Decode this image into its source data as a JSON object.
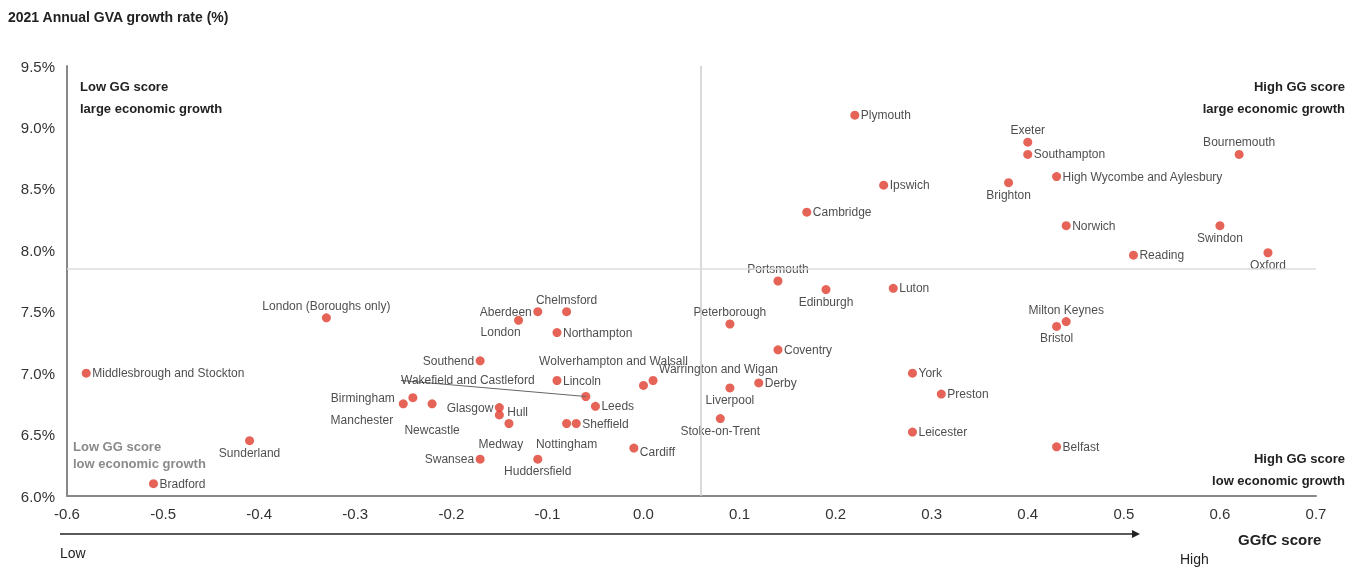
{
  "chart_data": {
    "type": "scatter",
    "ylabel": "2021 Annual GVA growth rate (%)",
    "xlabel": "GGfC score",
    "color": "#e03c2d",
    "marker": "circle",
    "xlim": [
      -0.6,
      0.7
    ],
    "xticks": [
      -0.6,
      -0.5,
      -0.4,
      -0.3,
      -0.2,
      -0.1,
      {
        "value": 0,
        "label": "0.0"
      },
      0.1,
      0.2,
      0.3,
      0.4,
      0.5,
      0.6,
      0.7
    ],
    "ylim": [
      6.0,
      9.5
    ],
    "yticks": [
      {
        "value": 6.0,
        "label": "6.0%"
      },
      {
        "value": 6.5,
        "label": "6.5%"
      },
      {
        "value": 7.0,
        "label": "7.0%"
      },
      {
        "value": 7.5,
        "label": "7.5%"
      },
      {
        "value": 8.0,
        "label": "8.0%"
      },
      {
        "value": 8.5,
        "label": "8.5%"
      },
      {
        "value": 9.0,
        "label": "9.0%"
      },
      {
        "value": 9.5,
        "label": "9.5%"
      }
    ],
    "x": [
      -0.58,
      -0.51,
      -0.41,
      -0.33,
      -0.24,
      -0.25,
      -0.22,
      -0.17,
      -0.17,
      -0.11,
      -0.13,
      -0.08,
      -0.09,
      -0.09,
      -0.15,
      -0.15,
      -0.14,
      -0.08,
      -0.07,
      -0.11,
      -0.06,
      -0.05,
      -0.01,
      0.0,
      0.01,
      0.08,
      0.09,
      0.12,
      0.09,
      0.14,
      0.14,
      0.19,
      0.26,
      0.28,
      0.31,
      0.28,
      0.43,
      0.44,
      0.43,
      0.22,
      0.4,
      0.4,
      0.62,
      0.25,
      0.38,
      0.43,
      0.17,
      0.44,
      0.6,
      0.51,
      0.65
    ],
    "values": [
      7.0,
      6.1,
      6.45,
      7.45,
      6.8,
      6.75,
      6.75,
      7.1,
      6.3,
      7.5,
      7.43,
      7.5,
      7.33,
      6.94,
      6.72,
      6.66,
      6.59,
      6.59,
      6.59,
      6.3,
      6.81,
      6.73,
      6.39,
      6.9,
      6.94,
      6.63,
      6.88,
      6.92,
      7.4,
      7.19,
      7.75,
      7.68,
      7.69,
      7.0,
      6.83,
      6.52,
      6.4,
      7.42,
      7.38,
      9.1,
      8.88,
      8.78,
      8.78,
      8.53,
      8.55,
      8.6,
      8.31,
      8.2,
      8.2,
      7.96,
      7.98
    ],
    "ref_lines": [
      {
        "axis": "x",
        "value": 0.055,
        "color": "#cccccc"
      },
      {
        "axis": "y",
        "value": 7.85,
        "color": "#dddddd"
      }
    ],
    "annotations": [
      "Low GG score\nlarge economic growth",
      "High GG score\nlarge economic growth",
      "Low GG score\nlow economic growth",
      "High GG score\nlow economic growth",
      "Low",
      "High",
      {
        "text": "Middlesbrough and Stockton",
        "x": -0.58,
        "y": 7.0
      },
      {
        "text": "Bradford",
        "x": -0.51,
        "y": 6.1
      },
      {
        "text": "Sunderland",
        "x": -0.41,
        "y": 6.45
      },
      {
        "text": "London (Boroughs only)",
        "x": -0.33,
        "y": 7.45
      },
      {
        "text": "Birmingham",
        "x": -0.24,
        "y": 6.8
      },
      {
        "text": "Manchester",
        "x": -0.25,
        "y": 6.75
      },
      {
        "text": "Newcastle",
        "x": -0.22,
        "y": 6.75
      },
      {
        "text": "Southend",
        "x": -0.17,
        "y": 7.1
      },
      {
        "text": "Swansea",
        "x": -0.17,
        "y": 6.3
      },
      {
        "text": "Aberdeen",
        "x": -0.11,
        "y": 7.5
      },
      {
        "text": "London",
        "x": -0.13,
        "y": 7.43
      },
      {
        "text": "Chelmsford",
        "x": -0.08,
        "y": 7.5
      },
      {
        "text": "Northampton",
        "x": -0.09,
        "y": 7.33
      },
      {
        "text": "Lincoln",
        "x": -0.09,
        "y": 6.94
      },
      {
        "text": "Glasgow",
        "x": -0.15,
        "y": 6.72
      },
      {
        "text": "Hull",
        "x": -0.15,
        "y": 6.66
      },
      {
        "text": "Medway",
        "x": -0.14,
        "y": 6.59
      },
      {
        "text": "Nottingham",
        "x": -0.08,
        "y": 6.59
      },
      {
        "text": "Sheffield",
        "x": -0.07,
        "y": 6.59
      },
      {
        "text": "Huddersfield",
        "x": -0.11,
        "y": 6.3
      },
      {
        "text": "Wakefield and Castleford",
        "x": -0.06,
        "y": 6.81
      },
      {
        "text": "Leeds",
        "x": -0.05,
        "y": 6.73
      },
      {
        "text": "Cardiff",
        "x": -0.01,
        "y": 6.39
      },
      {
        "text": "Wolverhampton and Walsall",
        "x": 0.0,
        "y": 6.9
      },
      {
        "text": "Warrington and Wigan",
        "x": 0.01,
        "y": 6.94
      },
      {
        "text": "Stoke-on-Trent",
        "x": 0.08,
        "y": 6.63
      },
      {
        "text": "Liverpool",
        "x": 0.09,
        "y": 6.88
      },
      {
        "text": "Derby",
        "x": 0.12,
        "y": 6.92
      },
      {
        "text": "Peterborough",
        "x": 0.09,
        "y": 7.4
      },
      {
        "text": "Coventry",
        "x": 0.14,
        "y": 7.19
      },
      {
        "text": "Portsmouth",
        "x": 0.14,
        "y": 7.75
      },
      {
        "text": "Edinburgh",
        "x": 0.19,
        "y": 7.68
      },
      {
        "text": "Luton",
        "x": 0.26,
        "y": 7.69
      },
      {
        "text": "York",
        "x": 0.28,
        "y": 7.0
      },
      {
        "text": "Preston",
        "x": 0.31,
        "y": 6.83
      },
      {
        "text": "Leicester",
        "x": 0.28,
        "y": 6.52
      },
      {
        "text": "Belfast",
        "x": 0.43,
        "y": 6.4
      },
      {
        "text": "Milton Keynes",
        "x": 0.44,
        "y": 7.42
      },
      {
        "text": "Bristol",
        "x": 0.43,
        "y": 7.38
      },
      {
        "text": "Plymouth",
        "x": 0.22,
        "y": 9.1
      },
      {
        "text": "Exeter",
        "x": 0.4,
        "y": 8.88
      },
      {
        "text": "Southampton",
        "x": 0.4,
        "y": 8.78
      },
      {
        "text": "Bournemouth",
        "x": 0.62,
        "y": 8.78
      },
      {
        "text": "Ipswich",
        "x": 0.25,
        "y": 8.53
      },
      {
        "text": "Brighton",
        "x": 0.38,
        "y": 8.55
      },
      {
        "text": "High Wycombe and Aylesbury",
        "x": 0.43,
        "y": 8.6
      },
      {
        "text": "Cambridge",
        "x": 0.17,
        "y": 8.31
      },
      {
        "text": "Norwich",
        "x": 0.44,
        "y": 8.2
      },
      {
        "text": "Swindon",
        "x": 0.6,
        "y": 8.2
      },
      {
        "text": "Reading",
        "x": 0.51,
        "y": 7.96
      },
      {
        "text": "Oxford",
        "x": 0.65,
        "y": 7.98
      }
    ]
  }
}
